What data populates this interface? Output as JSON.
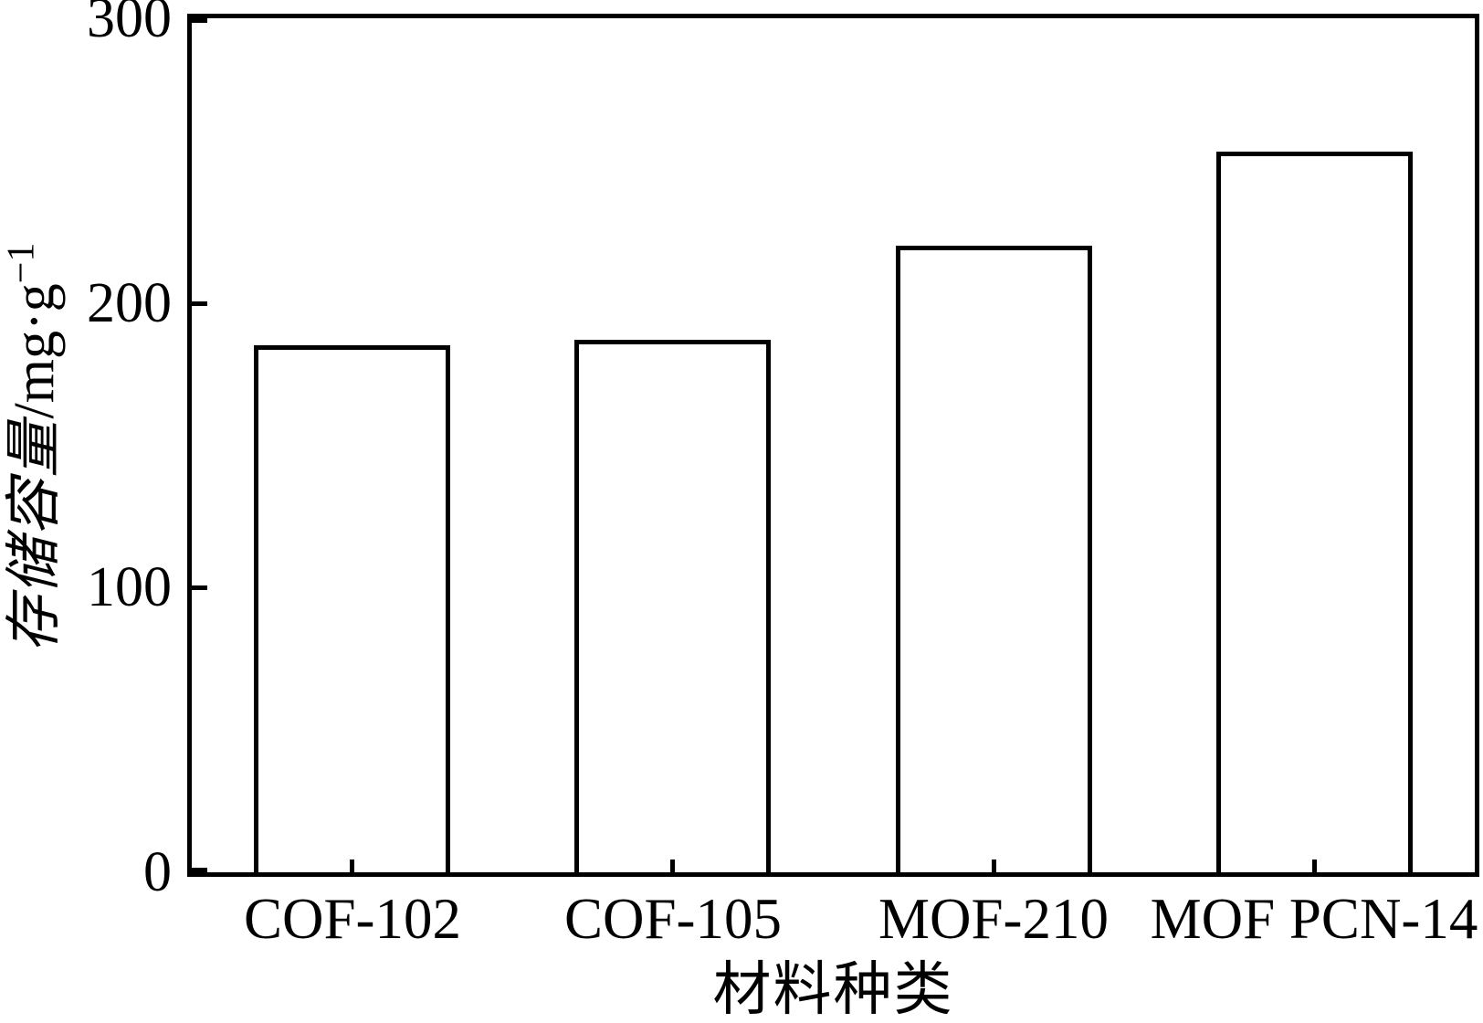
{
  "figure": {
    "background": "#ffffff",
    "line_color": "#000000"
  },
  "chart_data": {
    "type": "bar",
    "categories": [
      "COF-102",
      "COF-105",
      "MOF-210",
      "MOF PCN-14"
    ],
    "values": [
      185,
      187,
      220,
      253
    ],
    "title": "",
    "xlabel": "材料种类",
    "ylabel": "存储容量/mg·g⁻¹",
    "ylabel_parts": {
      "cjk": "存储容量",
      "unit": "/mg·g",
      "sup": "−1"
    },
    "ylim": [
      0,
      300
    ],
    "yticks": [
      0,
      100,
      200,
      300
    ],
    "grid": false,
    "legend": false,
    "bar_fill": "#ffffff",
    "bar_border": "#000000",
    "layout": "vertical bars, white fill, black outline, boxed axes, inward ticks"
  }
}
